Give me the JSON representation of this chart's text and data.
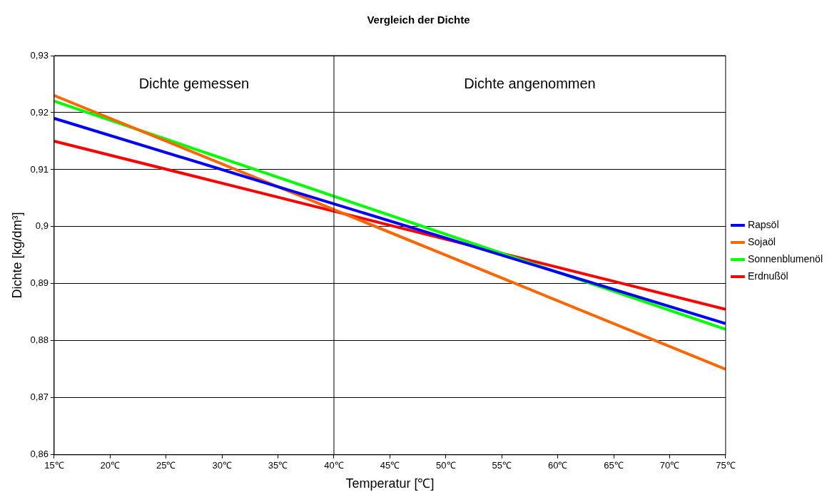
{
  "chart_data": {
    "type": "line",
    "title": "Vergleich der Dichte",
    "xlabel": "Temperatur [℃]",
    "ylabel": "Dichte [kg/dm³]",
    "xlim": [
      15,
      75
    ],
    "xticks": [
      {
        "value": 15,
        "label": "15℃"
      },
      {
        "value": 20,
        "label": "20℃"
      },
      {
        "value": 25,
        "label": "25℃"
      },
      {
        "value": 30,
        "label": "30℃"
      },
      {
        "value": 35,
        "label": "35℃"
      },
      {
        "value": 40,
        "label": "40℃"
      },
      {
        "value": 45,
        "label": "45℃"
      },
      {
        "value": 50,
        "label": "50℃"
      },
      {
        "value": 55,
        "label": "55℃"
      },
      {
        "value": 60,
        "label": "60℃"
      },
      {
        "value": 65,
        "label": "65℃"
      },
      {
        "value": 70,
        "label": "70℃"
      },
      {
        "value": 75,
        "label": "75℃"
      }
    ],
    "ylim": [
      0.86,
      0.93
    ],
    "yticks": [
      {
        "value": 0.86,
        "label": "0,86"
      },
      {
        "value": 0.87,
        "label": "0,87"
      },
      {
        "value": 0.88,
        "label": "0,88"
      },
      {
        "value": 0.89,
        "label": "0,89"
      },
      {
        "value": 0.9,
        "label": "0,9"
      },
      {
        "value": 0.91,
        "label": "0,91"
      },
      {
        "value": 0.92,
        "label": "0,92"
      },
      {
        "value": 0.93,
        "label": "0,93"
      }
    ],
    "x": [
      15,
      75
    ],
    "series": [
      {
        "name": "Rapsöl",
        "color": "#0000ff",
        "values": [
          0.919,
          0.883
        ]
      },
      {
        "name": "Sojaöl",
        "color": "#ff6600",
        "values": [
          0.923,
          0.875
        ]
      },
      {
        "name": "Sonnenblumenöl",
        "color": "#00ff00",
        "values": [
          0.922,
          0.882
        ]
      },
      {
        "name": "Erdnußöl",
        "color": "#ff0000",
        "values": [
          0.915,
          0.8855
        ]
      }
    ],
    "ref_lines": [
      {
        "axis": "x",
        "value": 40,
        "color": "#000000"
      }
    ],
    "annotations": [
      "Dichte gemessen",
      "Dichte angenommen"
    ],
    "grid": "y",
    "legend": "right",
    "marker": "none",
    "line_style": "solid"
  }
}
